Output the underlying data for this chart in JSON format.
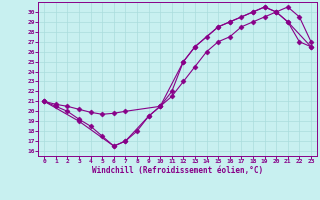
{
  "xlabel": "Windchill (Refroidissement éolien,°C)",
  "bg_color": "#c8f0f0",
  "line_color": "#880088",
  "grid_color": "#aadddd",
  "xlim": [
    -0.5,
    23.5
  ],
  "ylim": [
    15.5,
    31.0
  ],
  "xticks": [
    0,
    1,
    2,
    3,
    4,
    5,
    6,
    7,
    8,
    9,
    10,
    11,
    12,
    13,
    14,
    15,
    16,
    17,
    18,
    19,
    20,
    21,
    22,
    23
  ],
  "yticks": [
    16,
    17,
    18,
    19,
    20,
    21,
    22,
    23,
    24,
    25,
    26,
    27,
    28,
    29,
    30
  ],
  "line1_x": [
    0,
    1,
    2,
    3,
    4,
    5,
    6,
    7,
    8,
    9,
    10,
    11,
    12,
    13,
    14,
    15,
    16,
    17,
    18,
    19,
    20,
    21,
    22,
    23
  ],
  "line1_y": [
    21.0,
    20.5,
    20.0,
    19.2,
    18.5,
    17.5,
    16.5,
    17.0,
    18.0,
    19.5,
    20.5,
    22.0,
    25.0,
    26.5,
    27.5,
    28.5,
    29.0,
    29.5,
    30.0,
    30.5,
    30.0,
    29.0,
    27.0,
    26.5
  ],
  "line2_x": [
    0,
    1,
    2,
    3,
    4,
    5,
    6,
    7,
    10,
    11,
    12,
    13,
    14,
    15,
    16,
    17,
    18,
    19,
    20,
    21,
    22,
    23
  ],
  "line2_y": [
    21.0,
    20.7,
    20.5,
    20.2,
    19.9,
    19.7,
    19.8,
    20.0,
    20.5,
    21.5,
    23.0,
    24.5,
    26.0,
    27.0,
    27.5,
    28.5,
    29.0,
    29.5,
    30.0,
    30.5,
    29.5,
    27.0
  ],
  "line3_x": [
    0,
    3,
    6,
    7,
    9,
    10,
    12,
    13,
    15,
    16,
    18,
    19,
    20,
    21,
    23
  ],
  "line3_y": [
    21.0,
    19.0,
    16.5,
    17.0,
    19.5,
    20.5,
    25.0,
    26.5,
    28.5,
    29.0,
    30.0,
    30.5,
    30.0,
    29.0,
    26.5
  ]
}
